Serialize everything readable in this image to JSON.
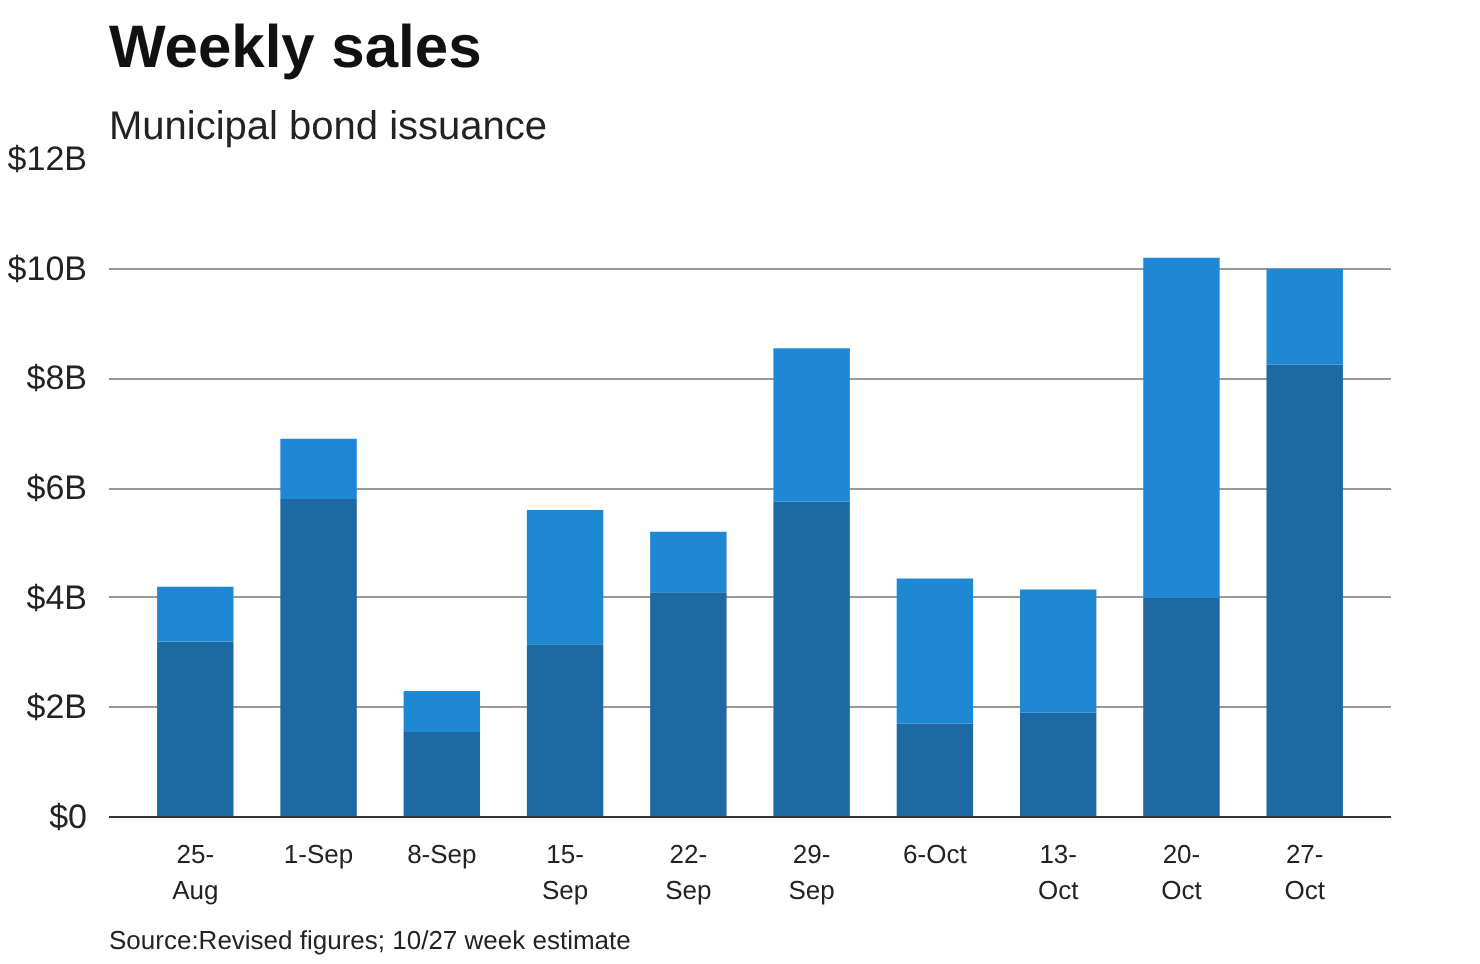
{
  "chart_data": {
    "type": "bar",
    "stacked": true,
    "title": "Weekly sales",
    "subtitle": "Municipal bond issuance",
    "categories": [
      "25-Aug",
      "1-Sep",
      "8-Sep",
      "15-Sep",
      "22-Sep",
      "29-Sep",
      "6-Oct",
      "13-Oct",
      "20-Oct",
      "27-Oct"
    ],
    "series": [
      {
        "color": "#1c69a3",
        "values": [
          3.2,
          5.8,
          1.55,
          3.15,
          4.1,
          5.75,
          1.7,
          1.9,
          4.0,
          8.25
        ]
      },
      {
        "color": "#1e88d4",
        "values": [
          1.0,
          1.1,
          0.75,
          2.45,
          1.1,
          2.8,
          2.65,
          2.25,
          6.2,
          1.75
        ]
      }
    ],
    "ylim": [
      0,
      12
    ],
    "yticks": [
      {
        "value": 0,
        "label": "$0"
      },
      {
        "value": 2,
        "label": "$2B"
      },
      {
        "value": 4,
        "label": "$4B"
      },
      {
        "value": 6,
        "label": "$6B"
      },
      {
        "value": 8,
        "label": "$8B"
      },
      {
        "value": 10,
        "label": "$10B"
      },
      {
        "value": 12,
        "label": "$12B"
      }
    ],
    "grid": "y",
    "annotations": [
      "Source:Revised figures; 10/27 week estimate"
    ]
  }
}
